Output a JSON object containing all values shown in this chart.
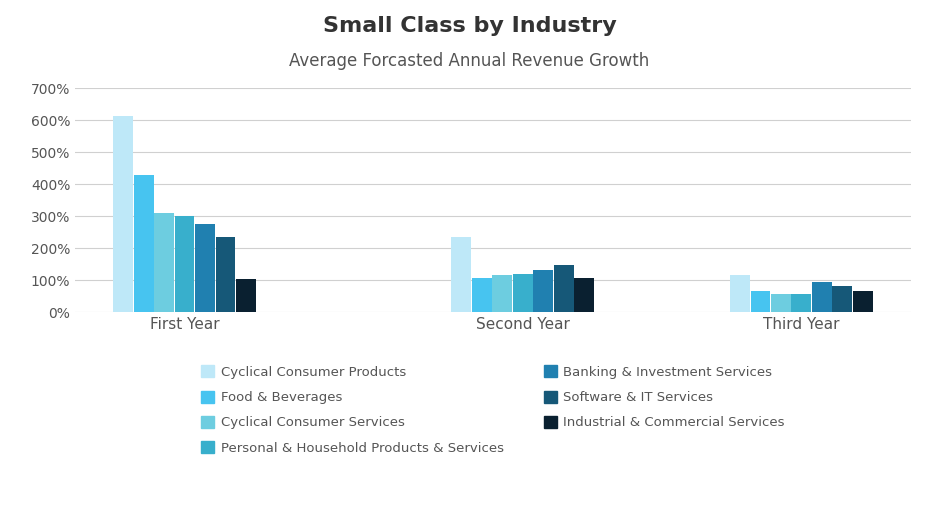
{
  "title": "Small Class by Industry",
  "subtitle": "Average Forcasted Annual Revenue Growth",
  "groups": [
    "First Year",
    "Second Year",
    "Third Year"
  ],
  "series": [
    {
      "name": "Cyclical Consumer Products",
      "color": "#BEE8F8",
      "values": [
        615,
        235,
        115
      ]
    },
    {
      "name": "Food & Beverages",
      "color": "#47C4F0",
      "values": [
        430,
        105,
        65
      ]
    },
    {
      "name": "Cyclical Consumer Services",
      "color": "#6DCDE0",
      "values": [
        310,
        115,
        55
      ]
    },
    {
      "name": "Personal & Household Products & Services",
      "color": "#38AFCC",
      "values": [
        300,
        120,
        55
      ]
    },
    {
      "name": "Banking & Investment Services",
      "color": "#2080B0",
      "values": [
        275,
        130,
        95
      ]
    },
    {
      "name": "Software & IT Services",
      "color": "#165878",
      "values": [
        235,
        148,
        80
      ]
    },
    {
      "name": "Industrial & Commercial Services",
      "color": "#0A2030",
      "values": [
        103,
        107,
        65
      ]
    }
  ],
  "legend_order": [
    [
      0,
      1
    ],
    [
      2,
      3
    ],
    [
      4,
      5
    ],
    [
      6
    ]
  ],
  "ylim": [
    0,
    700
  ],
  "yticks": [
    0,
    100,
    200,
    300,
    400,
    500,
    600,
    700
  ],
  "ytick_labels": [
    "0%",
    "100%",
    "200%",
    "300%",
    "400%",
    "500%",
    "600%",
    "700%"
  ],
  "background_color": "#ffffff",
  "grid_color": "#d0d0d0",
  "title_fontsize": 16,
  "subtitle_fontsize": 12,
  "tick_label_color": "#555555",
  "group_label_color": "#555555",
  "group_positions": [
    0.0,
    1.7,
    3.1
  ]
}
